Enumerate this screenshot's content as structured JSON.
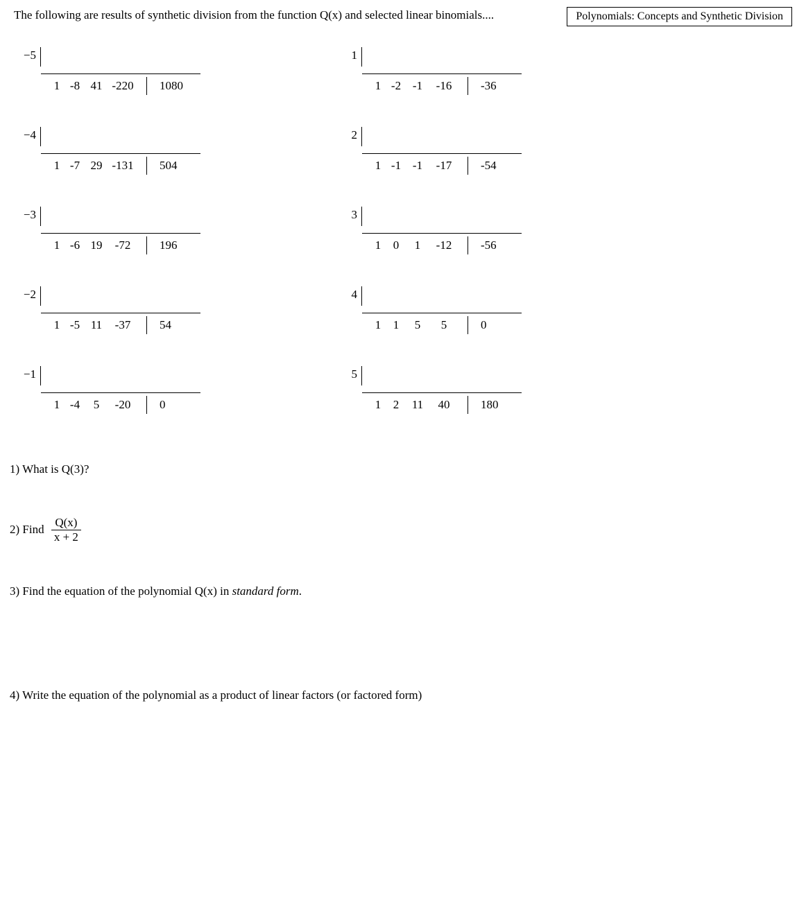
{
  "header": {
    "intro": "The following are results of synthetic division from the function Q(x) and selected linear binomials....",
    "title": "Polynomials: Concepts and Synthetic Division"
  },
  "left": [
    {
      "k": "−5",
      "q": [
        "1",
        "-8",
        "41",
        "-220"
      ],
      "r": "1080"
    },
    {
      "k": "−4",
      "q": [
        "1",
        "-7",
        "29",
        "-131"
      ],
      "r": "504"
    },
    {
      "k": "−3",
      "q": [
        "1",
        "-6",
        "19",
        "-72"
      ],
      "r": "196"
    },
    {
      "k": "−2",
      "q": [
        "1",
        "-5",
        "11",
        "-37"
      ],
      "r": "54"
    },
    {
      "k": "−1",
      "q": [
        "1",
        "-4",
        "5",
        "-20"
      ],
      "r": "0"
    }
  ],
  "right": [
    {
      "k": "1",
      "q": [
        "1",
        "-2",
        "-1",
        "-16"
      ],
      "r": "-36"
    },
    {
      "k": "2",
      "q": [
        "1",
        "-1",
        "-1",
        "-17"
      ],
      "r": "-54"
    },
    {
      "k": "3",
      "q": [
        "1",
        "0",
        "1",
        "-12"
      ],
      "r": "-56"
    },
    {
      "k": "4",
      "q": [
        "1",
        "1",
        "5",
        "5"
      ],
      "r": "0"
    },
    {
      "k": "5",
      "q": [
        "1",
        "2",
        "11",
        "40"
      ],
      "r": "180"
    }
  ],
  "questions": {
    "q1": "1)  What is  Q(3)?",
    "q2_pre": "2)  Find",
    "q2_num": "Q(x)",
    "q2_den": "x + 2",
    "q3_a": "3)  Find the equation of the polynomial  Q(x) in ",
    "q3_b": "standard form",
    "q3_c": ".",
    "q4": "4) Write the equation of the polynomial as a product of linear factors  (or factored form)"
  }
}
